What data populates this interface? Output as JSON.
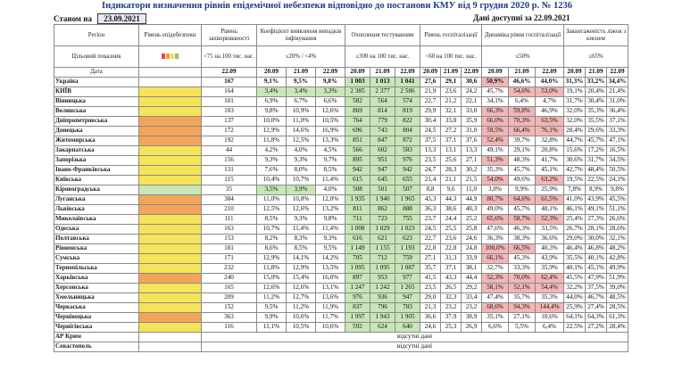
{
  "title": "Індикатори визначення рівнів епідемічної небезпеки відповідно до постанови КМУ від 9 грудня 2020 р. № 1236",
  "stanom_label": "Станом на",
  "stanom_date": "23.09.2021",
  "available_label": "Дані доступні за 22.09.2021",
  "headers": {
    "region": "Регіон",
    "level": "Рівень епідебезпеки",
    "morbidity": "Рівень захворюваності",
    "coef": "Коефіцієнт виявлення випадків інфікування",
    "testing": "Охоплення тестуванням",
    "hosp": "Рівень госпіталізації",
    "dyn": "Динаміка рівня госпіталізації",
    "oxy": "Завантаженість ліжок з киснем",
    "target": "Цільовий показник",
    "date": "Дата",
    "t_morb": "<75 на 100 тис. нас.",
    "t_coef": "≤20% / <4%",
    "t_test": "≥300 на 100 тис. нас.",
    "t_hosp": "<60 на 100 тис. нас.",
    "t_dyn": "≤50%",
    "t_oxy": "≤65%",
    "d1": "22.09",
    "d2": "20.09",
    "d3": "21.09",
    "d4": "22.09"
  },
  "indicator_colors": [
    "#e84545",
    "#f29a3a",
    "#f5e35a",
    "#8cc46a"
  ],
  "rows": [
    {
      "name": "Україна",
      "morb": "167",
      "c": [
        "9,1%",
        "9,5%",
        "9,8%"
      ],
      "t": [
        "1 003",
        "1 013",
        "1 041"
      ],
      "h": [
        "27,6",
        "29,1",
        "30,6"
      ],
      "d": [
        "50,9%",
        "46,6%",
        "44,0%"
      ],
      "o": [
        "31,3%",
        "33,2%",
        "34,4%"
      ],
      "lvl": ""
    },
    {
      "name": "КИЇВ",
      "morb": "164",
      "c": [
        "3,4%",
        "3,4%",
        "3,3%"
      ],
      "t": [
        "2 385",
        "2 377",
        "2 586"
      ],
      "h": [
        "21,9",
        "23,6",
        "24,2"
      ],
      "d": [
        "45,7%",
        "54,6%",
        "53,0%"
      ],
      "o": [
        "19,1%",
        "20,4%",
        "21,4%"
      ],
      "lvl": "y"
    },
    {
      "name": "Вінницька",
      "morb": "101",
      "c": [
        "6,9%",
        "6,7%",
        "6,6%"
      ],
      "t": [
        "582",
        "564",
        "574"
      ],
      "h": [
        "22,7",
        "21,2",
        "22,1"
      ],
      "d": [
        "34,1%",
        "6,4%",
        "4,7%"
      ],
      "o": [
        "31,7%",
        "30,4%",
        "31,0%"
      ],
      "lvl": "y"
    },
    {
      "name": "Волинська",
      "morb": "103",
      "c": [
        "9,8%",
        "10,9%",
        "12,6%"
      ],
      "t": [
        "869",
        "814",
        "819"
      ],
      "h": [
        "29,9",
        "32,1",
        "33,0"
      ],
      "d": [
        "66,3%",
        "59,8%",
        "46,9%"
      ],
      "o": [
        "32,0%",
        "35,3%",
        "36,4%"
      ],
      "lvl": "y"
    },
    {
      "name": "Дніпропетровська",
      "morb": "137",
      "c": [
        "10,0%",
        "11,0%",
        "10,5%"
      ],
      "t": [
        "764",
        "779",
        "822"
      ],
      "h": [
        "30,4",
        "33,8",
        "35,9"
      ],
      "d": [
        "66,0%",
        "70,3%",
        "63,5%"
      ],
      "o": [
        "32,0%",
        "35,5%",
        "37,1%"
      ],
      "lvl": "o"
    },
    {
      "name": "Донецька",
      "morb": "172",
      "c": [
        "12,9%",
        "14,6%",
        "16,9%"
      ],
      "t": [
        "696",
        "743",
        "804"
      ],
      "h": [
        "24,5",
        "27,2",
        "31,0"
      ],
      "d": [
        "59,5%",
        "66,4%",
        "76,1%"
      ],
      "o": [
        "28,4%",
        "29,6%",
        "33,3%"
      ],
      "lvl": "o"
    },
    {
      "name": "Житомирська",
      "morb": "192",
      "c": [
        "11,8%",
        "12,5%",
        "13,3%"
      ],
      "t": [
        "851",
        "847",
        "872"
      ],
      "h": [
        "37,5",
        "37,1",
        "37,6"
      ],
      "d": [
        "52,4%",
        "39,7%",
        "32,8%"
      ],
      "o": [
        "44,7%",
        "45,7%",
        "47,1%"
      ],
      "lvl": "o"
    },
    {
      "name": "Закарпатська",
      "morb": "44",
      "c": [
        "4,2%",
        "4,0%",
        "4,5%"
      ],
      "t": [
        "566",
        "602",
        "583"
      ],
      "h": [
        "13,3",
        "13,1",
        "13,3"
      ],
      "d": [
        "49,1%",
        "29,1%",
        "20,8%"
      ],
      "o": [
        "15,6%",
        "17,2%",
        "16,5%"
      ],
      "lvl": "y"
    },
    {
      "name": "Запорізька",
      "morb": "156",
      "c": [
        "9,3%",
        "9,3%",
        "9,7%"
      ],
      "t": [
        "895",
        "951",
        "976"
      ],
      "h": [
        "23,5",
        "25,6",
        "27,1"
      ],
      "d": [
        "51,3%",
        "48,3%",
        "41,7%"
      ],
      "o": [
        "30,6%",
        "31,7%",
        "34,5%"
      ],
      "lvl": "y"
    },
    {
      "name": "Івано-Франківська",
      "morb": "131",
      "c": [
        "7,6%",
        "8,0%",
        "8,5%"
      ],
      "t": [
        "942",
        "947",
        "942"
      ],
      "h": [
        "24,7",
        "28,3",
        "30,2"
      ],
      "d": [
        "35,3%",
        "45,7%",
        "45,1%"
      ],
      "o": [
        "42,7%",
        "48,4%",
        "50,5%"
      ],
      "lvl": "y"
    },
    {
      "name": "Київська",
      "morb": "115",
      "c": [
        "10,4%",
        "10,7%",
        "11,4%"
      ],
      "t": [
        "615",
        "645",
        "655"
      ],
      "h": [
        "21,4",
        "21,1",
        "21,5"
      ],
      "d": [
        "54,0%",
        "49,6%",
        "63,2%"
      ],
      "o": [
        "19,5%",
        "22,5%",
        "24,1%"
      ],
      "lvl": "y"
    },
    {
      "name": "Кіровоградська",
      "morb": "35",
      "c": [
        "3,5%",
        "3,9%",
        "4,0%"
      ],
      "t": [
        "508",
        "501",
        "507"
      ],
      "h": [
        "8,8",
        "9,6",
        "11,0"
      ],
      "d": [
        "3,8%",
        "9,9%",
        "25,9%"
      ],
      "o": [
        "7,8%",
        "8,9%",
        "9,8%"
      ],
      "lvl": "g"
    },
    {
      "name": "Луганська",
      "morb": "384",
      "c": [
        "11,0%",
        "10,8%",
        "12,0%"
      ],
      "t": [
        "1 935",
        "1 940",
        "1 965"
      ],
      "h": [
        "43,3",
        "44,3",
        "44,9"
      ],
      "d": [
        "80,7%",
        "64,6%",
        "61,5%"
      ],
      "o": [
        "41,0%",
        "43,9%",
        "45,5%"
      ],
      "lvl": "o"
    },
    {
      "name": "Львівська",
      "morb": "210",
      "c": [
        "12,5%",
        "12,6%",
        "13,2%"
      ],
      "t": [
        "811",
        "862",
        "888"
      ],
      "h": [
        "36,3",
        "38,6",
        "40,3"
      ],
      "d": [
        "49,0%",
        "45,7%",
        "48,1%"
      ],
      "o": [
        "46,1%",
        "49,1%",
        "51,1%"
      ],
      "lvl": "o"
    },
    {
      "name": "Миколаївська",
      "morb": "111",
      "c": [
        "8,5%",
        "9,3%",
        "9,8%"
      ],
      "t": [
        "711",
        "723",
        "755"
      ],
      "h": [
        "23,7",
        "24,4",
        "25,2"
      ],
      "d": [
        "65,6%",
        "58,7%",
        "52,3%"
      ],
      "o": [
        "25,4%",
        "27,3%",
        "26,6%"
      ],
      "lvl": "y"
    },
    {
      "name": "Одеська",
      "morb": "163",
      "c": [
        "10,7%",
        "11,4%",
        "11,4%"
      ],
      "t": [
        "1 008",
        "1 029",
        "1 023"
      ],
      "h": [
        "24,5",
        "25,5",
        "25,8"
      ],
      "d": [
        "47,6%",
        "46,3%",
        "33,5%"
      ],
      "o": [
        "26,7%",
        "28,1%",
        "28,6%"
      ],
      "lvl": "y"
    },
    {
      "name": "Полтавська",
      "morb": "153",
      "c": [
        "8,2%",
        "8,3%",
        "9,3%"
      ],
      "t": [
        "616",
        "621",
        "623"
      ],
      "h": [
        "22,7",
        "23,6",
        "24,6"
      ],
      "d": [
        "36,3%",
        "38,3%",
        "36,6%"
      ],
      "o": [
        "29,0%",
        "30,0%",
        "32,1%"
      ],
      "lvl": "y"
    },
    {
      "name": "Рівненська",
      "morb": "181",
      "c": [
        "8,6%",
        "8,5%",
        "9,5%"
      ],
      "t": [
        "1 149",
        "1 155",
        "1 193"
      ],
      "h": [
        "22,8",
        "22,8",
        "24,8"
      ],
      "d": [
        "100,0%",
        "66,5%",
        "40,3%"
      ],
      "o": [
        "46,4%",
        "46,8%",
        "48,2%"
      ],
      "lvl": "y"
    },
    {
      "name": "Сумська",
      "morb": "171",
      "c": [
        "12,9%",
        "14,1%",
        "14,2%"
      ],
      "t": [
        "705",
        "712",
        "759"
      ],
      "h": [
        "27,1",
        "31,3",
        "33,9"
      ],
      "d": [
        "66,1%",
        "45,3%",
        "43,9%"
      ],
      "o": [
        "35,5%",
        "40,1%",
        "42,8%"
      ],
      "lvl": "y"
    },
    {
      "name": "Тернопільська",
      "morb": "232",
      "c": [
        "11,8%",
        "12,9%",
        "13,5%"
      ],
      "t": [
        "1 095",
        "1 095",
        "1 087"
      ],
      "h": [
        "35,7",
        "37,1",
        "38,1"
      ],
      "d": [
        "32,7%",
        "33,3%",
        "35,9%"
      ],
      "o": [
        "40,1%",
        "45,1%",
        "49,9%"
      ],
      "lvl": "y"
    },
    {
      "name": "Харківська",
      "morb": "240",
      "c": [
        "15,0%",
        "15,4%",
        "16,0%"
      ],
      "t": [
        "897",
        "953",
        "977"
      ],
      "h": [
        "41,5",
        "43,3",
        "44,4"
      ],
      "d": [
        "52,3%",
        "70,0%",
        "62,4%"
      ],
      "o": [
        "45,5%",
        "47,9%",
        "51,9%"
      ],
      "lvl": "o"
    },
    {
      "name": "Херсонська",
      "morb": "165",
      "c": [
        "12,6%",
        "12,6%",
        "13,1%"
      ],
      "t": [
        "1 247",
        "1 242",
        "1 265"
      ],
      "h": [
        "23,5",
        "26,5",
        "29,2"
      ],
      "d": [
        "58,1%",
        "52,1%",
        "54,4%"
      ],
      "o": [
        "32,2%",
        "37,5%",
        "39,0%"
      ],
      "lvl": "y"
    },
    {
      "name": "Хмельницька",
      "morb": "209",
      "c": [
        "11,2%",
        "12,7%",
        "13,6%"
      ],
      "t": [
        "976",
        "936",
        "947"
      ],
      "h": [
        "29,0",
        "32,3",
        "33,4"
      ],
      "d": [
        "47,4%",
        "35,7%",
        "35,3%"
      ],
      "o": [
        "44,0%",
        "46,7%",
        "48,5%"
      ],
      "lvl": "y"
    },
    {
      "name": "Черкаська",
      "morb": "152",
      "c": [
        "9,5%",
        "11,2%",
        "11,9%"
      ],
      "t": [
        "837",
        "796",
        "783"
      ],
      "h": [
        "21,3",
        "23,2",
        "23,2"
      ],
      "d": [
        "68,6%",
        "94,3%",
        "144,4%"
      ],
      "o": [
        "25,9%",
        "27,4%",
        "28,5%"
      ],
      "lvl": "y"
    },
    {
      "name": "Чернівецька",
      "morb": "363",
      "c": [
        "9,9%",
        "10,6%",
        "11,7%"
      ],
      "t": [
        "1 997",
        "1 943",
        "1 905"
      ],
      "h": [
        "36,6",
        "37,9",
        "38,9"
      ],
      "d": [
        "35,1%",
        "27,1%",
        "10,6%"
      ],
      "o": [
        "64,1%",
        "64,3%",
        "61,3%"
      ],
      "lvl": "o"
    },
    {
      "name": "Чернігівська",
      "morb": "116",
      "c": [
        "11,1%",
        "10,5%",
        "10,6%"
      ],
      "t": [
        "592",
        "624",
        "640"
      ],
      "h": [
        "24,6",
        "25,3",
        "26,9"
      ],
      "d": [
        "6,6%",
        "5,5%",
        "6,4%"
      ],
      "o": [
        "22,5%",
        "27,2%",
        "28,4%"
      ],
      "lvl": "y"
    }
  ],
  "no_data_rows": [
    {
      "name": "АР Крим",
      "text": "відсутні дані"
    },
    {
      "name": "Севастополь",
      "text": "відсутні дані"
    }
  ]
}
